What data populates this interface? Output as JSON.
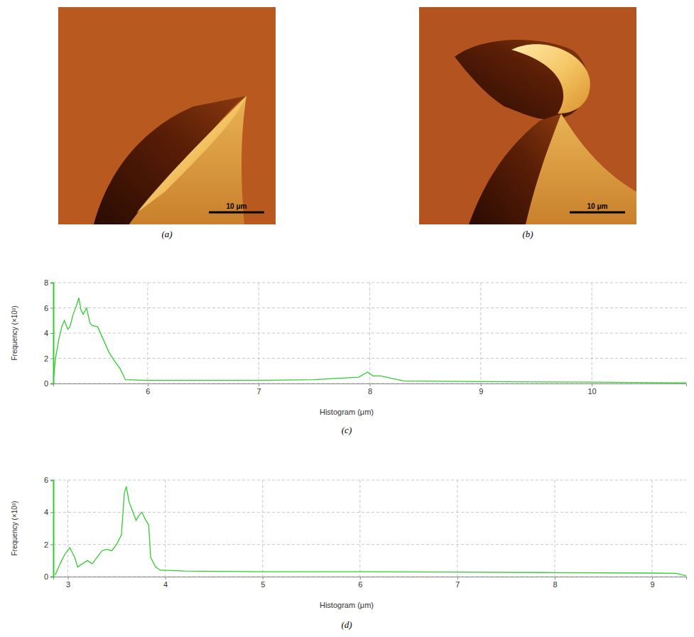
{
  "images": [
    {
      "label": "(a)",
      "scale_bar": "10 μm"
    },
    {
      "label": "(b)",
      "scale_bar": "10 μm"
    }
  ],
  "chart_data": [
    {
      "type": "line",
      "title": "(c)",
      "x_label": "Histogram (μm)",
      "y_label": "Frequency (×10³)",
      "color": "#33cc33",
      "grid": true,
      "x": [
        5.15,
        5.17,
        5.2,
        5.23,
        5.25,
        5.28,
        5.3,
        5.33,
        5.36,
        5.38,
        5.4,
        5.42,
        5.45,
        5.48,
        5.5,
        5.55,
        5.6,
        5.65,
        5.7,
        5.75,
        5.8,
        6,
        6.5,
        7,
        7.5,
        7.9,
        7.98,
        8.03,
        8.1,
        8.3,
        9,
        10,
        10.85
      ],
      "values": [
        0.2,
        2,
        3.5,
        4.6,
        5.0,
        4.3,
        4.5,
        5.5,
        6.2,
        6.8,
        5.8,
        5.5,
        6.0,
        4.8,
        4.6,
        4.5,
        3.5,
        2.5,
        1.8,
        1.2,
        0.3,
        0.25,
        0.25,
        0.25,
        0.3,
        0.5,
        0.9,
        0.6,
        0.6,
        0.2,
        0.15,
        0.1,
        0.05
      ],
      "xlim": [
        5.15,
        10.85
      ],
      "xticks": [
        6,
        7,
        8,
        9,
        10
      ],
      "ylim": [
        0,
        8
      ],
      "yticks": [
        0,
        2,
        4,
        6,
        8
      ]
    },
    {
      "type": "line",
      "title": "(d)",
      "x_label": "Histogram (μm)",
      "y_label": "Frequency (×10³)",
      "color": "#33cc33",
      "grid": true,
      "x": [
        2.87,
        2.92,
        2.97,
        3.02,
        3.07,
        3.1,
        3.15,
        3.2,
        3.25,
        3.3,
        3.35,
        3.4,
        3.45,
        3.5,
        3.55,
        3.58,
        3.6,
        3.63,
        3.65,
        3.7,
        3.73,
        3.76,
        3.8,
        3.83,
        3.85,
        3.9,
        3.95,
        4.2,
        5,
        6,
        7,
        8,
        9,
        9.25,
        9.35
      ],
      "values": [
        0.1,
        0.8,
        1.4,
        1.8,
        1.2,
        0.6,
        0.8,
        1.0,
        0.8,
        1.2,
        1.6,
        1.7,
        1.6,
        2.0,
        2.6,
        5.2,
        5.6,
        4.6,
        4.3,
        3.5,
        3.8,
        4.0,
        3.5,
        3.2,
        1.2,
        0.6,
        0.4,
        0.35,
        0.3,
        0.3,
        0.28,
        0.25,
        0.22,
        0.2,
        0.05
      ],
      "xlim": [
        2.85,
        9.35
      ],
      "xticks": [
        3,
        4,
        5,
        6,
        7,
        8,
        9
      ],
      "ylim": [
        0,
        6
      ],
      "yticks": [
        0,
        2,
        4,
        6
      ]
    }
  ]
}
